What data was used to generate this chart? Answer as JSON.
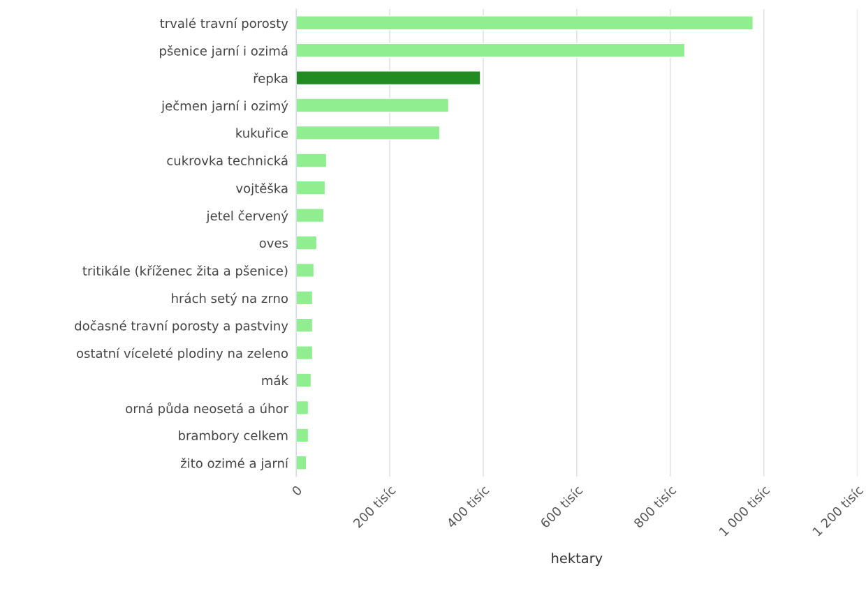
{
  "chart_data": {
    "type": "bar",
    "orientation": "horizontal",
    "xlabel": "hektary",
    "categories": [
      "trvalé travní porosty",
      "pšenice jarní i ozimá",
      "řepka",
      "ječmen jarní i ozimý",
      "kukuřice",
      "cukrovka technická",
      "vojtěška",
      "jetel červený",
      "oves",
      "tritikále (kříženec žita a pšenice)",
      "hrách setý na zrno",
      "dočasné travní porosty a pastviny",
      "ostatní víceleté plodiny na zeleno",
      "mák",
      "orná půda neosetá a úhor",
      "brambory celkem",
      "žito ozimé a jarní"
    ],
    "values": [
      977,
      831,
      394,
      326,
      307,
      65,
      62,
      59,
      44,
      38,
      35,
      35,
      35,
      32,
      26,
      26,
      22
    ],
    "colors": [
      "#90ee90",
      "#90ee90",
      "#228b22",
      "#90ee90",
      "#90ee90",
      "#90ee90",
      "#90ee90",
      "#90ee90",
      "#90ee90",
      "#90ee90",
      "#90ee90",
      "#90ee90",
      "#90ee90",
      "#90ee90",
      "#90ee90",
      "#90ee90",
      "#90ee90"
    ],
    "xlim": [
      0,
      1200
    ],
    "xticks": [
      0,
      {
        "value": 200,
        "label": "200 tisíc"
      },
      {
        "value": 400,
        "label": "400 tisíc"
      },
      {
        "value": 600,
        "label": "600 tisíc"
      },
      {
        "value": 800,
        "label": "800 tisíc"
      },
      {
        "value": 1000,
        "label": "1 000 tisíc"
      },
      {
        "value": 1200,
        "label": "1 200 tisíc"
      }
    ],
    "grid": "x",
    "legend": false
  }
}
